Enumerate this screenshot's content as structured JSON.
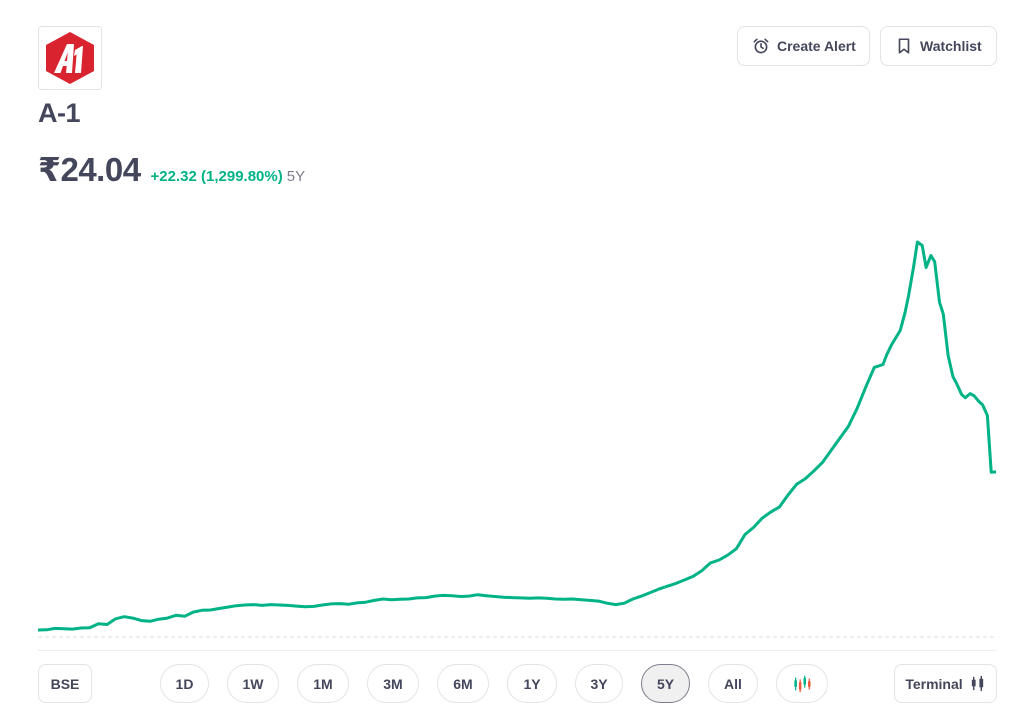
{
  "stock": {
    "name": "A-1",
    "price": "₹24.04",
    "change": "+22.32 (1,299.80%)",
    "period": "5Y"
  },
  "header": {
    "create_alert_label": "Create Alert",
    "watchlist_label": "Watchlist"
  },
  "controls": {
    "exchange_label": "BSE",
    "ranges": [
      "1D",
      "1W",
      "1M",
      "3M",
      "6M",
      "1Y",
      "3Y",
      "5Y",
      "All"
    ],
    "active_range": "5Y",
    "terminal_label": "Terminal"
  },
  "colors": {
    "line": "#00b386",
    "logo_red": "#d9232e",
    "text": "#44475b"
  },
  "chart_data": {
    "type": "line",
    "x": [
      0,
      0.9,
      1.8,
      2.7,
      3.6,
      4.5,
      5.4,
      6.3,
      7.2,
      8.1,
      9.0,
      9.9,
      10.8,
      11.7,
      12.6,
      13.5,
      14.4,
      15.3,
      16.2,
      17.1,
      18.0,
      18.9,
      19.8,
      20.7,
      21.6,
      22.5,
      23.4,
      24.3,
      25.2,
      26.1,
      27.0,
      27.9,
      28.8,
      29.7,
      30.6,
      31.5,
      32.4,
      33.3,
      34.2,
      35.1,
      36.0,
      36.9,
      37.8,
      38.7,
      39.6,
      40.5,
      41.4,
      42.3,
      43.2,
      44.1,
      45.0,
      45.9,
      46.8,
      47.7,
      48.6,
      49.5,
      50.4,
      51.3,
      52.2,
      53.1,
      54.0,
      54.9,
      55.8,
      56.7,
      57.6,
      58.5,
      59.4,
      60.3,
      61.2,
      62.1,
      63.0,
      63.9,
      64.8,
      65.7,
      66.6,
      67.5,
      68.4,
      69.3,
      70.2,
      71.1,
      72.0,
      72.9,
      73.8,
      74.7,
      75.6,
      76.5,
      77.4,
      78.3,
      79.2,
      80.1,
      81.0,
      81.9,
      82.8,
      83.7,
      84.6,
      85.5,
      86.4,
      87.3,
      88.2,
      88.6,
      89.1,
      90.0,
      90.5,
      90.9,
      91.4,
      91.8,
      92.3,
      92.7,
      93.2,
      93.6,
      94.1,
      94.5,
      95.0,
      95.5,
      95.9,
      96.4,
      96.8,
      97.3,
      97.7,
      98.2,
      98.6,
      99.1,
      99.5,
      100
    ],
    "y": [
      1.72,
      1.75,
      1.95,
      1.9,
      1.85,
      2.0,
      2.05,
      2.6,
      2.5,
      3.3,
      3.6,
      3.4,
      3.05,
      2.95,
      3.25,
      3.4,
      3.8,
      3.65,
      4.25,
      4.5,
      4.55,
      4.75,
      4.95,
      5.15,
      5.25,
      5.3,
      5.2,
      5.3,
      5.25,
      5.2,
      5.1,
      5.0,
      5.05,
      5.25,
      5.4,
      5.45,
      5.35,
      5.55,
      5.65,
      5.9,
      6.1,
      6.0,
      6.05,
      6.1,
      6.25,
      6.3,
      6.5,
      6.6,
      6.55,
      6.45,
      6.5,
      6.7,
      6.55,
      6.45,
      6.35,
      6.3,
      6.25,
      6.2,
      6.25,
      6.2,
      6.1,
      6.05,
      6.1,
      6.0,
      5.9,
      5.8,
      5.5,
      5.3,
      5.5,
      6.1,
      6.5,
      7.0,
      7.5,
      7.9,
      8.3,
      8.8,
      9.3,
      10.1,
      11.2,
      11.6,
      12.3,
      13.2,
      15.2,
      16.2,
      17.5,
      18.4,
      19.1,
      20.8,
      22.3,
      23.1,
      24.2,
      25.4,
      27.1,
      28.8,
      30.5,
      33.0,
      36.0,
      38.8,
      39.2,
      40.6,
      42.0,
      44.0,
      46.5,
      49.1,
      53.0,
      56.5,
      56.0,
      52.9,
      54.6,
      53.7,
      48.0,
      46.3,
      40.5,
      37.5,
      36.5,
      35.0,
      34.5,
      35.1,
      34.8,
      34.0,
      33.5,
      32.0,
      24.0,
      24.04
    ],
    "y_scaled_note": "",
    "xlim": [
      0,
      100
    ],
    "title": "",
    "xlabel": "",
    "ylabel": "",
    "grid": false,
    "legend": "none"
  }
}
